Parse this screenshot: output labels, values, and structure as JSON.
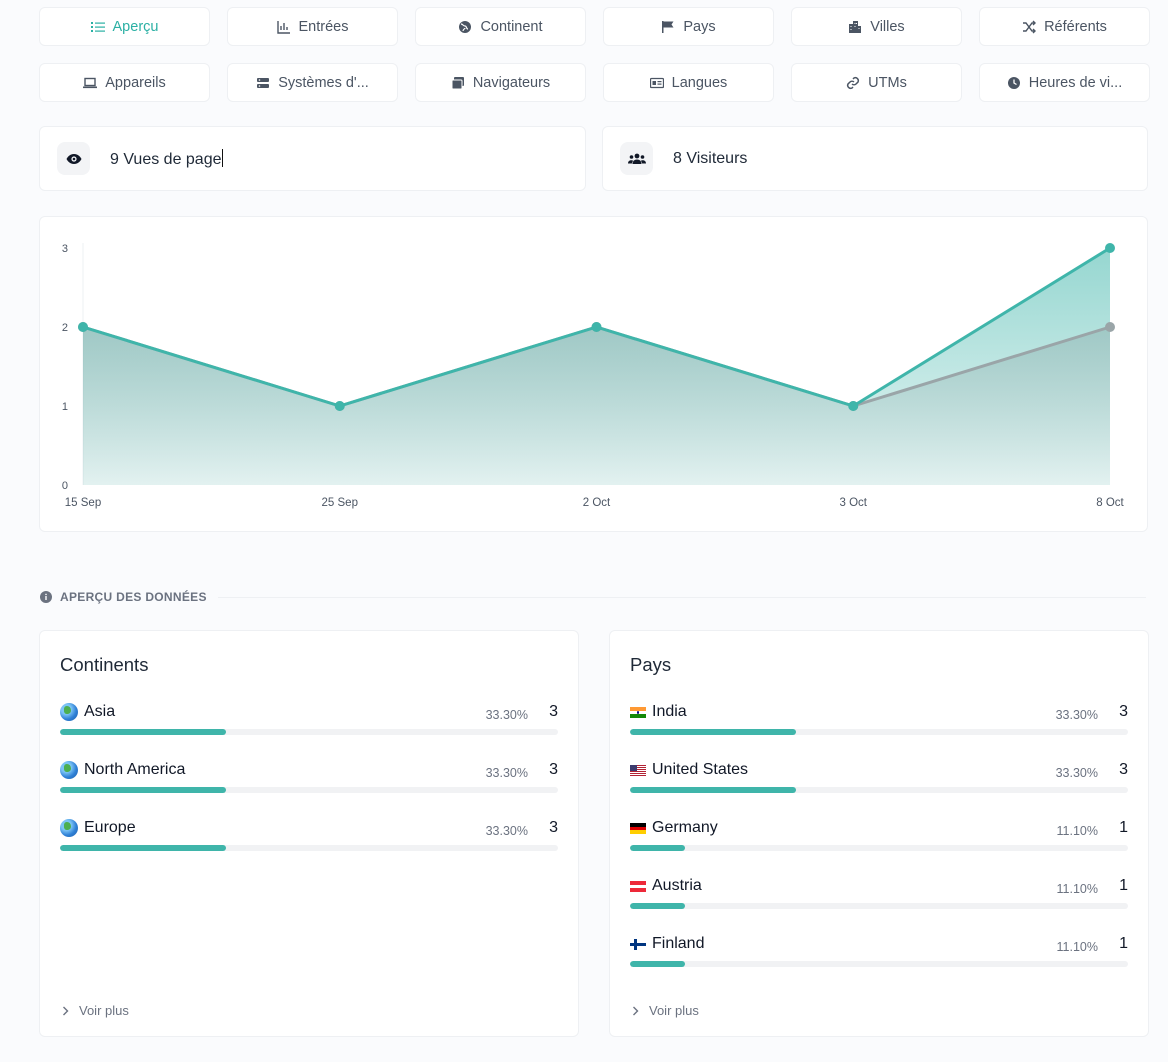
{
  "tabs": [
    {
      "label": "Aperçu",
      "icon": "list-icon",
      "active": true
    },
    {
      "label": "Entrées",
      "icon": "bar-chart-icon"
    },
    {
      "label": "Continent",
      "icon": "globe-icon"
    },
    {
      "label": "Pays",
      "icon": "flag-icon"
    },
    {
      "label": "Villes",
      "icon": "building-icon"
    },
    {
      "label": "Référents",
      "icon": "shuffle-icon"
    },
    {
      "label": "Appareils",
      "icon": "laptop-icon"
    },
    {
      "label": "Systèmes d'...",
      "icon": "server-icon"
    },
    {
      "label": "Navigateurs",
      "icon": "windows-icon"
    },
    {
      "label": "Langues",
      "icon": "id-card-icon"
    },
    {
      "label": "UTMs",
      "icon": "link-icon"
    },
    {
      "label": "Heures de vi...",
      "icon": "clock-icon"
    }
  ],
  "stats": {
    "pageviews": {
      "label": "9 Vues de page",
      "icon": "eye-icon"
    },
    "visitors": {
      "label": "8 Visiteurs",
      "icon": "users-icon"
    }
  },
  "chart_data": {
    "type": "area",
    "x": [
      "15 Sep",
      "25 Sep",
      "2 Oct",
      "3 Oct",
      "8 Oct"
    ],
    "ylim": [
      0,
      3
    ],
    "yticks": [
      0,
      1,
      2,
      3
    ],
    "grid": false,
    "series": [
      {
        "values": [
          2,
          1,
          2,
          1,
          3
        ],
        "color": "#3fb5aa"
      },
      {
        "values": [
          2,
          1,
          2,
          1,
          2
        ],
        "color": "#9aa5a8"
      }
    ]
  },
  "section": {
    "title": "APERÇU DES DONNÉES",
    "icon": "info-icon"
  },
  "continents": {
    "title": "Continents",
    "rows": [
      {
        "name": "Asia",
        "pct": "33.30%",
        "count": "3",
        "fraction": 0.333
      },
      {
        "name": "North America",
        "pct": "33.30%",
        "count": "3",
        "fraction": 0.333
      },
      {
        "name": "Europe",
        "pct": "33.30%",
        "count": "3",
        "fraction": 0.333
      }
    ],
    "more": "Voir plus"
  },
  "countries": {
    "title": "Pays",
    "rows": [
      {
        "name": "India",
        "pct": "33.30%",
        "count": "3",
        "fraction": 0.333,
        "flag": "in"
      },
      {
        "name": "United States",
        "pct": "33.30%",
        "count": "3",
        "fraction": 0.333,
        "flag": "us"
      },
      {
        "name": "Germany",
        "pct": "11.10%",
        "count": "1",
        "fraction": 0.111,
        "flag": "de"
      },
      {
        "name": "Austria",
        "pct": "11.10%",
        "count": "1",
        "fraction": 0.111,
        "flag": "at"
      },
      {
        "name": "Finland",
        "pct": "11.10%",
        "count": "1",
        "fraction": 0.111,
        "flag": "fi"
      }
    ],
    "more": "Voir plus"
  },
  "colors": {
    "accent": "#2bb0a4",
    "bar": "#3fb5aa",
    "muted": "#6b7280"
  }
}
